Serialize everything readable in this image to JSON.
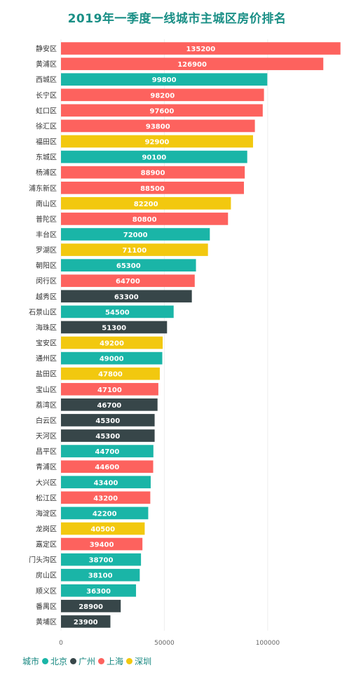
{
  "chart_data": {
    "type": "bar",
    "orientation": "horizontal",
    "title": "2019年一季度一线城市主城区房价排名",
    "legend": {
      "title": "城市",
      "placement": "bottom-left",
      "entries": [
        {
          "name": "北京",
          "color": "#1ab5a7"
        },
        {
          "name": "广州",
          "color": "#374649"
        },
        {
          "name": "上海",
          "color": "#fd625e"
        },
        {
          "name": "深圳",
          "color": "#f2c80f"
        }
      ]
    },
    "xlim": [
      0,
      137000
    ],
    "xticks": [
      0,
      50000,
      100000
    ],
    "grid": true,
    "bars": [
      {
        "category": "静安区",
        "value": 135200,
        "city": "上海"
      },
      {
        "category": "黄浦区",
        "value": 126900,
        "city": "上海"
      },
      {
        "category": "西城区",
        "value": 99800,
        "city": "北京"
      },
      {
        "category": "长宁区",
        "value": 98200,
        "city": "上海"
      },
      {
        "category": "虹口区",
        "value": 97600,
        "city": "上海"
      },
      {
        "category": "徐汇区",
        "value": 93800,
        "city": "上海"
      },
      {
        "category": "福田区",
        "value": 92900,
        "city": "深圳"
      },
      {
        "category": "东城区",
        "value": 90100,
        "city": "北京"
      },
      {
        "category": "杨浦区",
        "value": 88900,
        "city": "上海"
      },
      {
        "category": "浦东新区",
        "value": 88500,
        "city": "上海"
      },
      {
        "category": "南山区",
        "value": 82200,
        "city": "深圳"
      },
      {
        "category": "普陀区",
        "value": 80800,
        "city": "上海"
      },
      {
        "category": "丰台区",
        "value": 72000,
        "city": "北京"
      },
      {
        "category": "罗湖区",
        "value": 71100,
        "city": "深圳"
      },
      {
        "category": "朝阳区",
        "value": 65300,
        "city": "北京"
      },
      {
        "category": "闵行区",
        "value": 64700,
        "city": "上海"
      },
      {
        "category": "越秀区",
        "value": 63300,
        "city": "广州"
      },
      {
        "category": "石景山区",
        "value": 54500,
        "city": "北京"
      },
      {
        "category": "海珠区",
        "value": 51300,
        "city": "广州"
      },
      {
        "category": "宝安区",
        "value": 49200,
        "city": "深圳"
      },
      {
        "category": "通州区",
        "value": 49000,
        "city": "北京"
      },
      {
        "category": "盐田区",
        "value": 47800,
        "city": "深圳"
      },
      {
        "category": "宝山区",
        "value": 47100,
        "city": "上海"
      },
      {
        "category": "荔湾区",
        "value": 46700,
        "city": "广州"
      },
      {
        "category": "白云区",
        "value": 45300,
        "city": "广州"
      },
      {
        "category": "天河区",
        "value": 45300,
        "city": "广州"
      },
      {
        "category": "昌平区",
        "value": 44700,
        "city": "北京"
      },
      {
        "category": "青浦区",
        "value": 44600,
        "city": "上海"
      },
      {
        "category": "大兴区",
        "value": 43400,
        "city": "北京"
      },
      {
        "category": "松江区",
        "value": 43200,
        "city": "上海"
      },
      {
        "category": "海淀区",
        "value": 42200,
        "city": "北京"
      },
      {
        "category": "龙岗区",
        "value": 40500,
        "city": "深圳"
      },
      {
        "category": "嘉定区",
        "value": 39400,
        "city": "上海"
      },
      {
        "category": "门头沟区",
        "value": 38700,
        "city": "北京"
      },
      {
        "category": "房山区",
        "value": 38100,
        "city": "北京"
      },
      {
        "category": "顺义区",
        "value": 36300,
        "city": "北京"
      },
      {
        "category": "番禺区",
        "value": 28900,
        "city": "广州"
      },
      {
        "category": "黄埔区",
        "value": 23900,
        "city": "广州"
      }
    ]
  }
}
